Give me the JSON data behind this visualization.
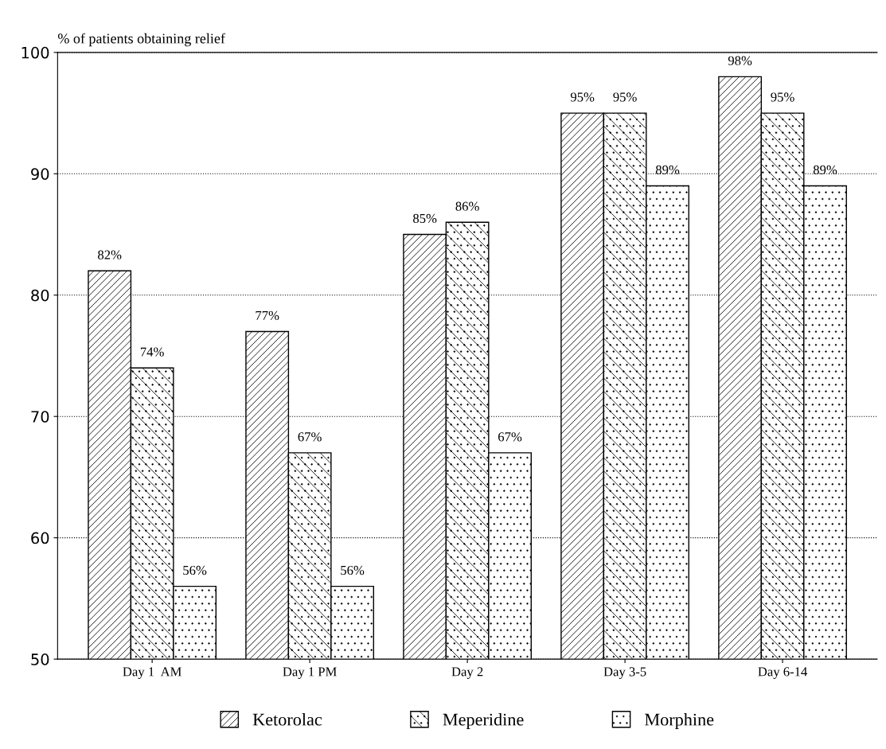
{
  "chart_data": {
    "type": "bar",
    "ylabel": "% of patients obtaining relief",
    "categories": [
      "Day 1  AM",
      "Day 1 PM",
      "Day 2",
      "Day 3-5",
      "Day 6-14"
    ],
    "series": [
      {
        "name": "Ketorolac",
        "color": "#000000",
        "values": [
          82,
          77,
          85,
          95,
          98
        ],
        "value_labels": [
          "82%",
          "77%",
          "85%",
          "95%",
          "98%"
        ]
      },
      {
        "name": "Meperidine",
        "color": "#000000",
        "values": [
          74,
          67,
          86,
          95,
          95
        ],
        "value_labels": [
          "74%",
          "67%",
          "86%",
          "95%",
          "95%"
        ]
      },
      {
        "name": "Morphine",
        "color": "#000000",
        "values": [
          56,
          56,
          67,
          89,
          89
        ],
        "value_labels": [
          "56%",
          "56%",
          "67%",
          "89%",
          "89%"
        ]
      }
    ],
    "ylim": [
      50,
      100
    ],
    "yticks": [
      50,
      60,
      70,
      80,
      90,
      100
    ],
    "grid": "y",
    "legend": "bottom"
  }
}
